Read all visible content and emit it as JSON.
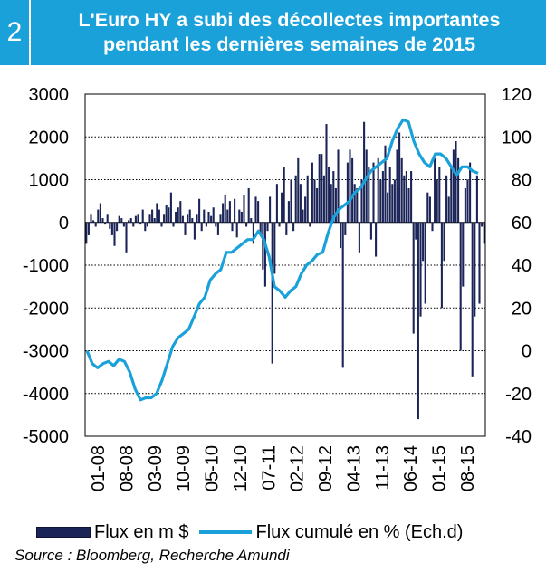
{
  "header": {
    "number": "2",
    "title_line1": "L'Euro HY a subi des décollectes importantes",
    "title_line2": "pendant les dernières semaines de 2015"
  },
  "legend": {
    "bars": "Flux en m $",
    "line": "Flux cumulé en % (Ech.d)"
  },
  "source": "Source : Bloomberg, Recherche Amundi",
  "colors": {
    "header": "#1aa1d9",
    "bars": "#1a2456",
    "line": "#1aa1d9"
  },
  "chart_data": {
    "type": "bar+line",
    "x_tick_labels": [
      "01-08",
      "08-08",
      "03-09",
      "10-09",
      "05-10",
      "12-10",
      "07-11",
      "02-12",
      "09-12",
      "04-13",
      "11-13",
      "06-14",
      "01-15",
      "08-15"
    ],
    "left_axis": {
      "ylim": [
        -5000,
        3000
      ],
      "ticks": [
        3000,
        2000,
        1000,
        0,
        -1000,
        -2000,
        -3000,
        -4000,
        -5000
      ]
    },
    "right_axis": {
      "ylim": [
        -40,
        120
      ],
      "ticks": [
        120,
        100,
        80,
        60,
        40,
        20,
        0,
        -20,
        -40
      ]
    },
    "grid": "horizontal",
    "series": [
      {
        "name": "Flux en m $",
        "type": "bar",
        "axis": "left",
        "values": [
          -500,
          -300,
          200,
          50,
          -100,
          300,
          450,
          100,
          -50,
          200,
          -150,
          -300,
          -550,
          -200,
          150,
          100,
          -100,
          -700,
          50,
          100,
          -100,
          150,
          200,
          -50,
          300,
          -200,
          -100,
          200,
          300,
          100,
          450,
          300,
          -100,
          200,
          400,
          350,
          700,
          -100,
          250,
          350,
          500,
          150,
          -300,
          200,
          300,
          100,
          -400,
          200,
          550,
          -200,
          300,
          -100,
          250,
          150,
          350,
          -100,
          -300,
          200,
          450,
          650,
          300,
          500,
          -200,
          550,
          -350,
          300,
          250,
          650,
          -100,
          800,
          100,
          -500,
          600,
          500,
          -300,
          -1100,
          -1500,
          -200,
          600,
          -3300,
          -1200,
          900,
          -100,
          700,
          1300,
          -300,
          500,
          1000,
          -200,
          1100,
          1500,
          900,
          300,
          600,
          1100,
          -100,
          1400,
          1000,
          800,
          1600,
          1600,
          1100,
          2300,
          1300,
          900,
          1200,
          800,
          1700,
          -600,
          -3400,
          -300,
          1400,
          1700,
          1500,
          900,
          800,
          -700,
          1000,
          2350,
          1700,
          1300,
          -400,
          1400,
          -800,
          1500,
          1000,
          1200,
          1800,
          700,
          1300,
          900,
          1000,
          1700,
          2100,
          1500,
          1100,
          1200,
          800,
          1200,
          -2600,
          -400,
          -4600,
          -2200,
          -900,
          -1900,
          700,
          600,
          -200,
          1500,
          1000,
          1300,
          -2000,
          -900,
          1100,
          600,
          1300,
          1700,
          1900,
          1500,
          -3000,
          -1500,
          800,
          1000,
          1400,
          -3600,
          -2200,
          1100,
          -1900,
          -100,
          -500
        ]
      },
      {
        "name": "Flux cumulé en % (Ech.d)",
        "type": "line",
        "axis": "right",
        "values": [
          0,
          -6,
          -8,
          -6,
          -5,
          -7,
          -4,
          -5,
          -10,
          -18,
          -23,
          -22,
          -22,
          -20,
          -14,
          -6,
          2,
          6,
          8,
          10,
          16,
          22,
          25,
          33,
          36,
          38,
          46,
          46,
          48,
          50,
          52,
          52,
          56,
          52,
          44,
          30,
          28,
          25,
          28,
          30,
          36,
          40,
          42,
          45,
          46,
          55,
          62,
          66,
          68,
          70,
          74,
          76,
          80,
          84,
          86,
          88,
          90,
          98,
          104,
          108,
          107,
          98,
          92,
          88,
          86,
          92,
          92,
          90,
          86,
          82,
          86,
          86,
          84,
          83
        ]
      }
    ]
  }
}
